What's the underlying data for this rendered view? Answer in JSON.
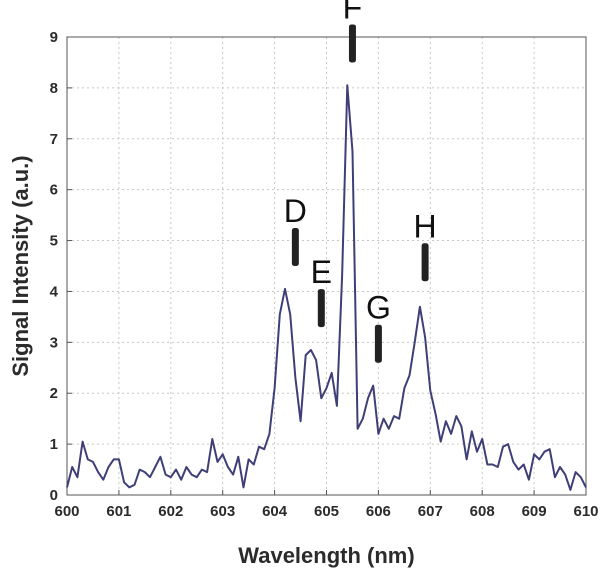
{
  "chart_data": {
    "type": "line",
    "xlabel": "Wavelength (nm)",
    "ylabel": "Signal Intensity (a.u.)",
    "xlim": [
      600,
      610
    ],
    "ylim": [
      0,
      9
    ],
    "x_ticks": [
      600,
      601,
      602,
      603,
      604,
      605,
      606,
      607,
      608,
      609,
      610
    ],
    "y_ticks": [
      0,
      1,
      2,
      3,
      4,
      5,
      6,
      7,
      8,
      9
    ],
    "grid": true,
    "line_color": "#3f3f78",
    "marker_color": "#222222",
    "series": [
      {
        "x": [
          600.0,
          600.1,
          600.2,
          600.3,
          600.4,
          600.5,
          600.6,
          600.7,
          600.8,
          600.9,
          601.0,
          601.1,
          601.2,
          601.3,
          601.4,
          601.5,
          601.6,
          601.7,
          601.8,
          601.9,
          602.0,
          602.1,
          602.2,
          602.3,
          602.4,
          602.5,
          602.6,
          602.7,
          602.8,
          602.9,
          603.0,
          603.1,
          603.2,
          603.3,
          603.4,
          603.5,
          603.6,
          603.7,
          603.8,
          603.9,
          604.0,
          604.1,
          604.2,
          604.3,
          604.4,
          604.5,
          604.6,
          604.7,
          604.8,
          604.9,
          605.0,
          605.1,
          605.2,
          605.3,
          605.4,
          605.5,
          605.6,
          605.7,
          605.8,
          605.9,
          606.0,
          606.1,
          606.2,
          606.3,
          606.4,
          606.5,
          606.6,
          606.7,
          606.8,
          606.9,
          607.0,
          607.1,
          607.2,
          607.3,
          607.4,
          607.5,
          607.6,
          607.7,
          607.8,
          607.9,
          608.0,
          608.1,
          608.2,
          608.3,
          608.4,
          608.5,
          608.6,
          608.7,
          608.8,
          608.9,
          609.0,
          609.1,
          609.2,
          609.3,
          609.4,
          609.5,
          609.6,
          609.7,
          609.8,
          609.9,
          610.0
        ],
        "y": [
          0.15,
          0.55,
          0.35,
          1.05,
          0.7,
          0.65,
          0.45,
          0.3,
          0.55,
          0.7,
          0.7,
          0.25,
          0.15,
          0.2,
          0.5,
          0.45,
          0.35,
          0.55,
          0.75,
          0.4,
          0.35,
          0.5,
          0.3,
          0.55,
          0.4,
          0.35,
          0.5,
          0.45,
          1.1,
          0.65,
          0.8,
          0.55,
          0.4,
          0.75,
          0.15,
          0.7,
          0.6,
          0.95,
          0.9,
          1.2,
          2.1,
          3.55,
          4.05,
          3.55,
          2.3,
          1.45,
          2.75,
          2.85,
          2.65,
          1.9,
          2.1,
          2.4,
          1.75,
          4.3,
          8.05,
          6.75,
          1.3,
          1.5,
          1.9,
          2.15,
          1.2,
          1.5,
          1.3,
          1.55,
          1.5,
          2.1,
          2.35,
          3.0,
          3.7,
          3.1,
          2.05,
          1.6,
          1.05,
          1.45,
          1.2,
          1.55,
          1.35,
          0.7,
          1.25,
          0.85,
          1.1,
          0.6,
          0.6,
          0.55,
          0.95,
          1.0,
          0.65,
          0.5,
          0.6,
          0.3,
          0.8,
          0.7,
          0.85,
          0.9,
          0.35,
          0.55,
          0.4,
          0.1,
          0.45,
          0.35,
          0.15
        ]
      }
    ],
    "annotations": [
      {
        "label": "D",
        "x": 604.4,
        "y": 4.5
      },
      {
        "label": "E",
        "x": 604.9,
        "y": 3.3
      },
      {
        "label": "F",
        "x": 605.5,
        "y": 8.5
      },
      {
        "label": "G",
        "x": 606.0,
        "y": 2.6
      },
      {
        "label": "H",
        "x": 606.9,
        "y": 4.2
      }
    ]
  }
}
